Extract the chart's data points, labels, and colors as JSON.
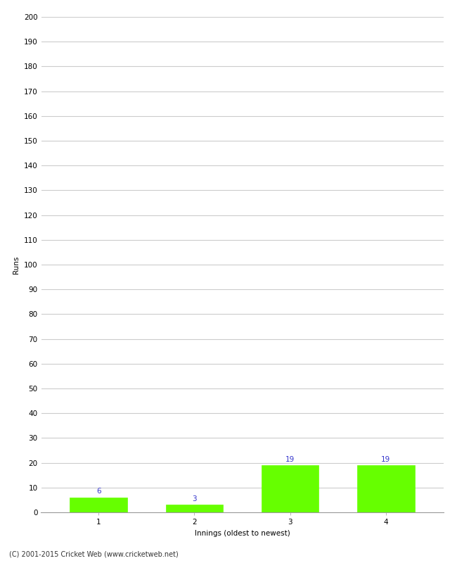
{
  "categories": [
    1,
    2,
    3,
    4
  ],
  "values": [
    6,
    3,
    19,
    19
  ],
  "bar_color": "#66ff00",
  "bar_edge_color": "#66ff00",
  "ylabel": "Runs",
  "xlabel": "Innings (oldest to newest)",
  "ylim": [
    0,
    200
  ],
  "yticks": [
    0,
    10,
    20,
    30,
    40,
    50,
    60,
    70,
    80,
    90,
    100,
    110,
    120,
    130,
    140,
    150,
    160,
    170,
    180,
    190,
    200
  ],
  "label_color": "#3333cc",
  "label_fontsize": 7.5,
  "tick_fontsize": 7.5,
  "axis_label_fontsize": 7.5,
  "footer_text": "(C) 2001-2015 Cricket Web (www.cricketweb.net)",
  "footer_fontsize": 7,
  "background_color": "#ffffff",
  "grid_color": "#cccccc"
}
